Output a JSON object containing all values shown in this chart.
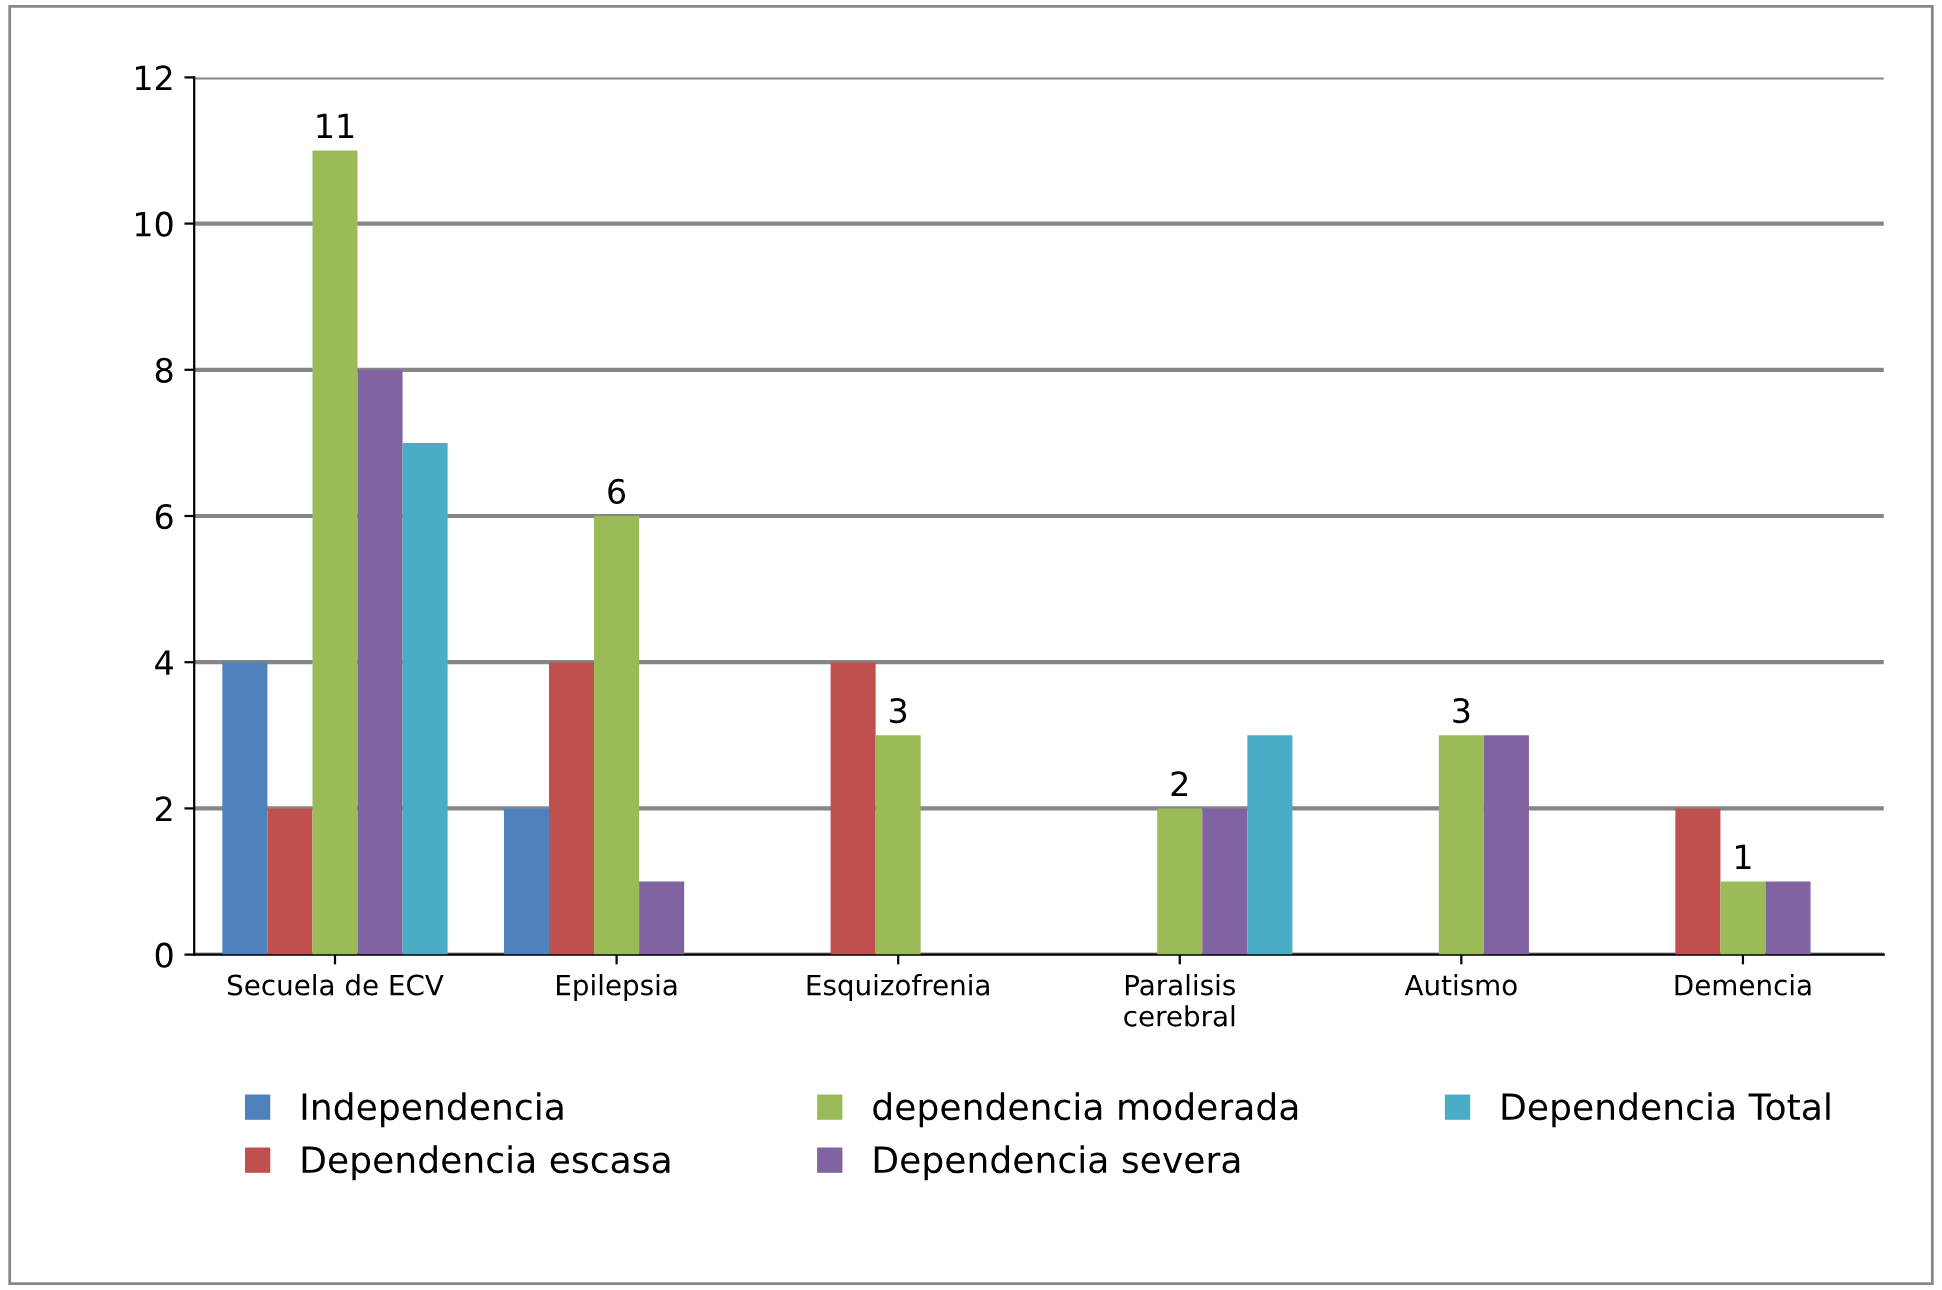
{
  "chart_data": {
    "type": "bar",
    "categories": [
      "Secuela de ECV",
      "Epilepsia",
      "Esquizofrenia",
      "Paralisis\ncerebral",
      "Autismo",
      "Demencia"
    ],
    "series": [
      {
        "name": "Independencia",
        "color": "#4f81bd",
        "values": [
          4,
          2,
          0,
          0,
          0,
          0
        ]
      },
      {
        "name": "Dependencia escasa",
        "color": "#c0504d",
        "values": [
          2,
          4,
          4,
          0,
          0,
          2
        ]
      },
      {
        "name": "dependencia moderada",
        "color": "#9bbb59",
        "values": [
          11,
          6,
          3,
          2,
          3,
          1
        ],
        "value_labels": [
          "11",
          "6",
          "3",
          "2",
          "3",
          "1"
        ]
      },
      {
        "name": "Dependencia severa",
        "color": "#8064a2",
        "values": [
          8,
          1,
          0,
          2,
          3,
          1
        ]
      },
      {
        "name": "Dependencia Total",
        "color": "#4bacc6",
        "values": [
          7,
          0,
          0,
          3,
          0,
          0
        ]
      }
    ],
    "ylim": [
      0,
      12
    ],
    "yticks": [
      0,
      2,
      4,
      6,
      8,
      10,
      12
    ],
    "grid": "y",
    "legend": "bottom"
  }
}
